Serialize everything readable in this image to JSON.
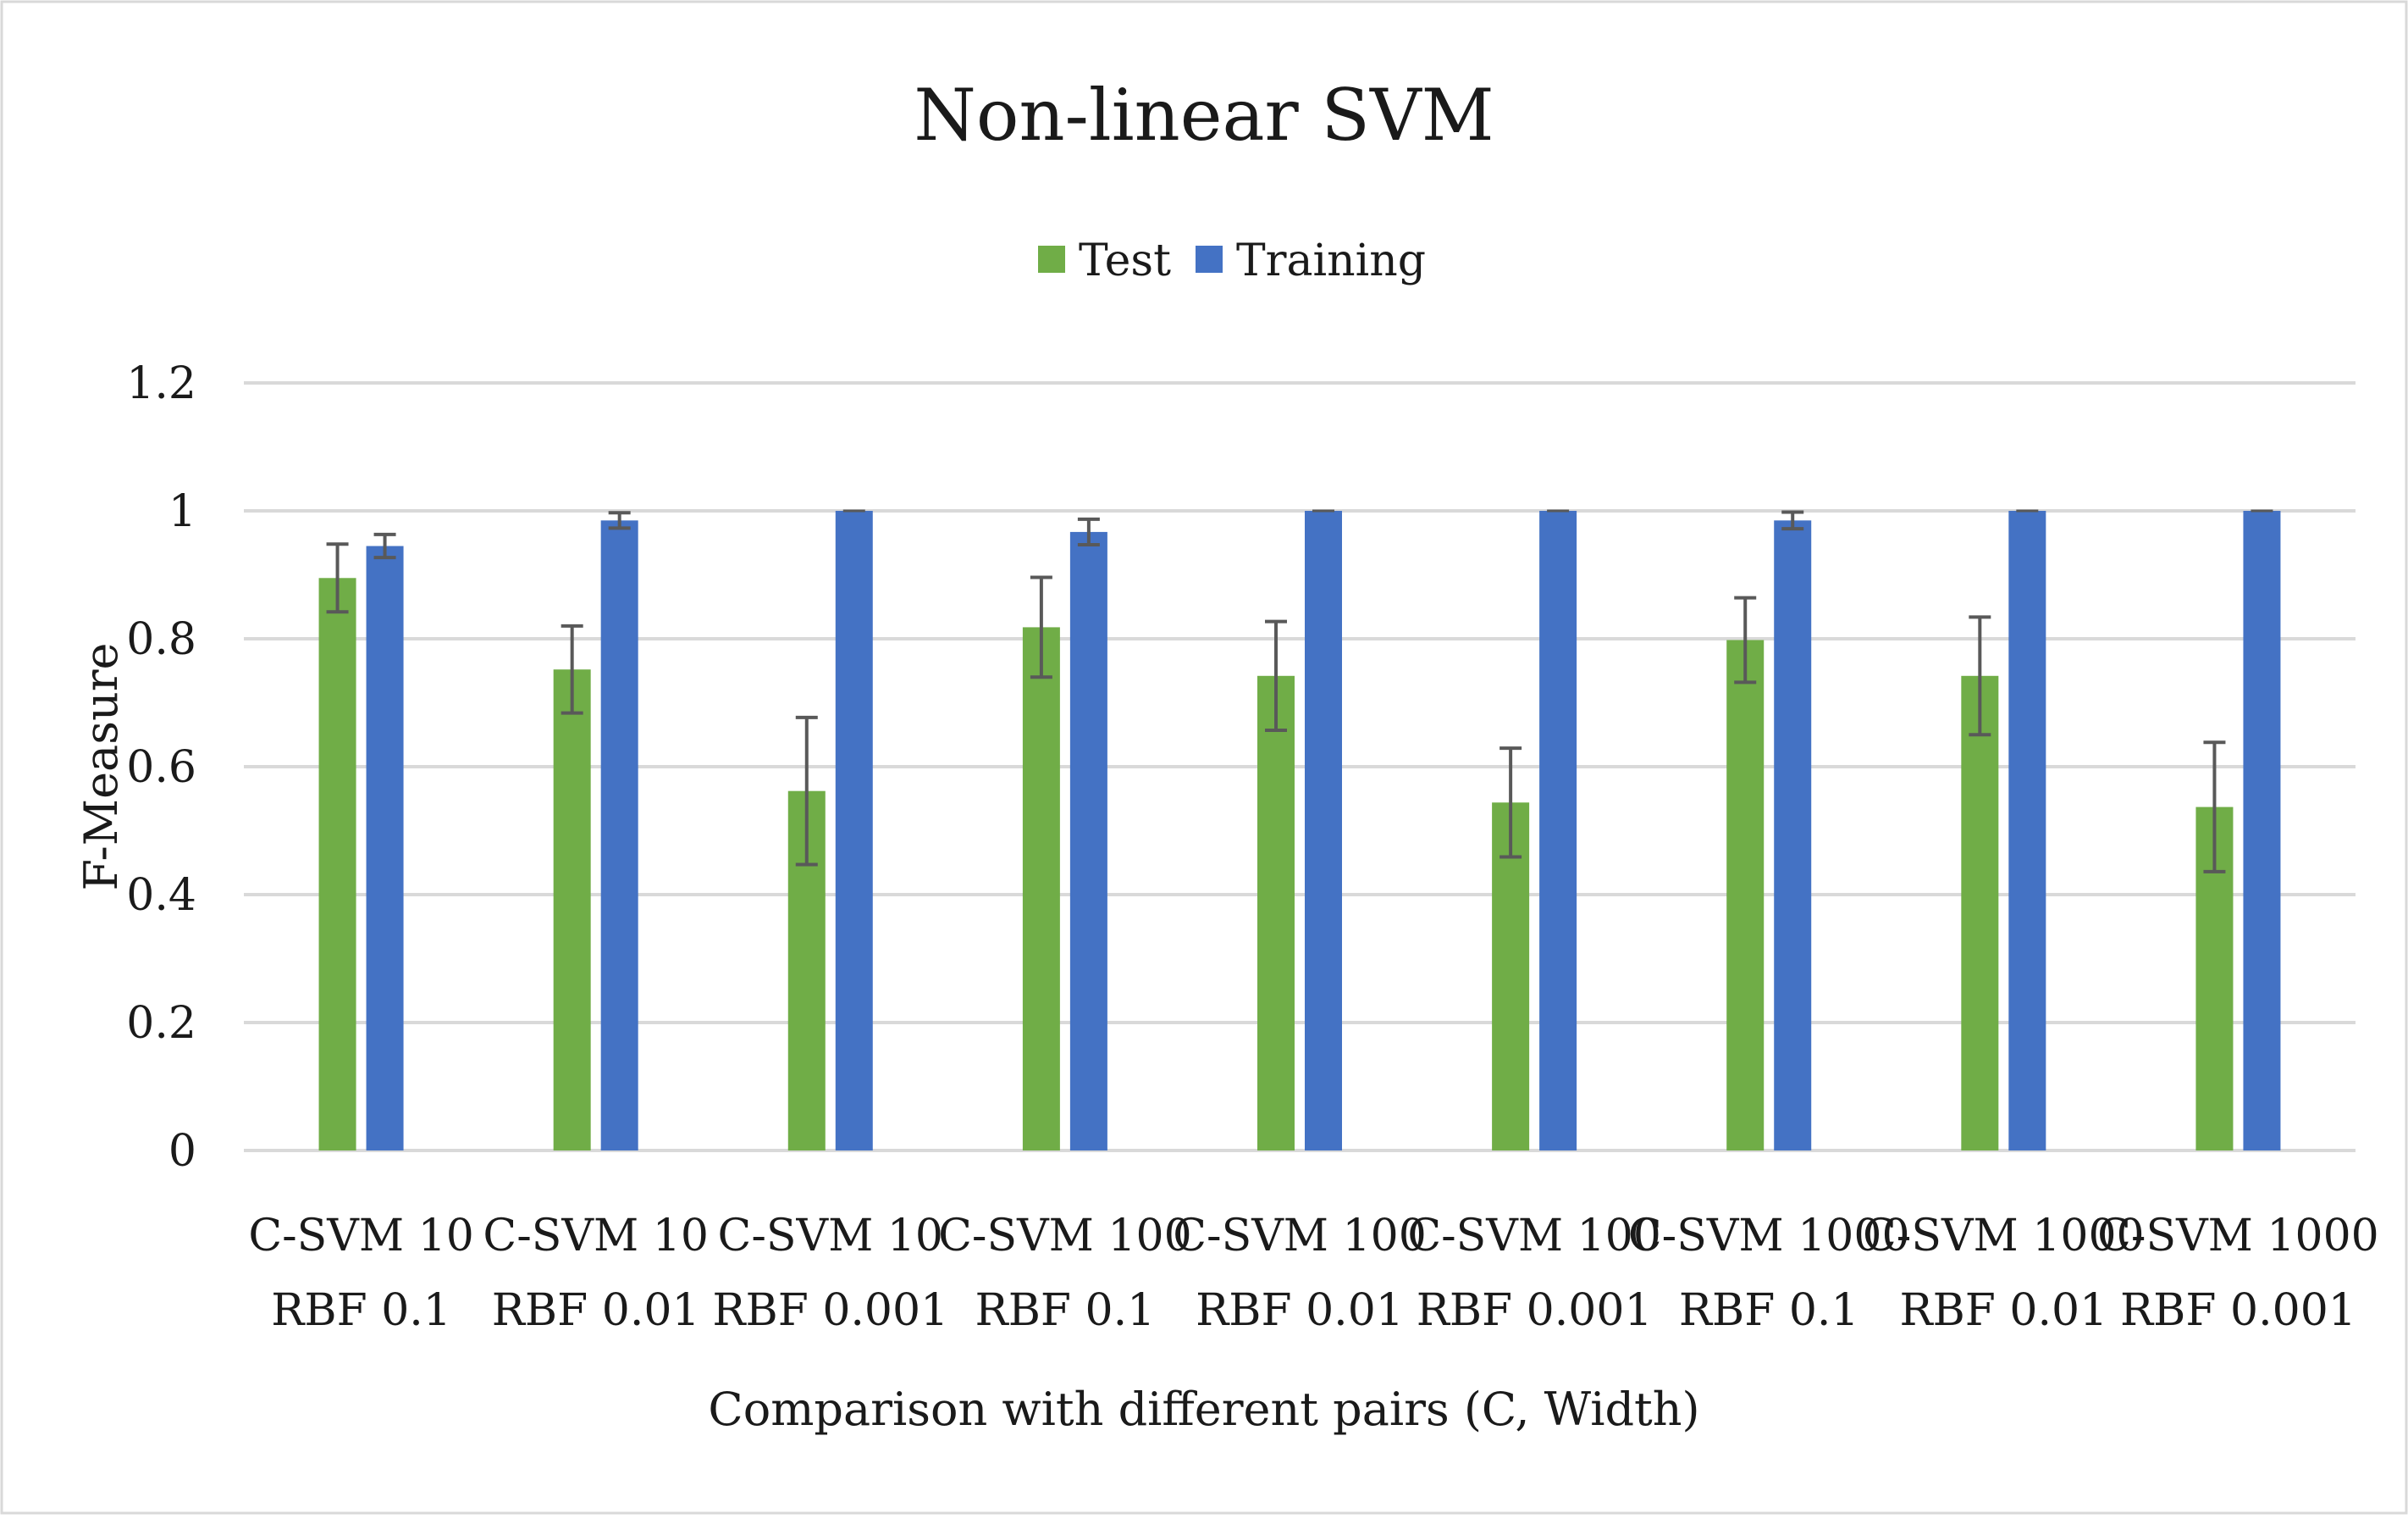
{
  "chart_data": {
    "type": "bar",
    "title": "Non-linear SVM",
    "xlabel": "Comparison with different pairs (C, Width)",
    "ylabel": "F-Measure",
    "ylim": [
      0,
      1.2
    ],
    "yticks": [
      "0",
      "0.2",
      "0.4",
      "0.6",
      "0.8",
      "1",
      "1.2"
    ],
    "grid": true,
    "legend_position": "top",
    "categories": [
      [
        "C-SVM 10",
        "RBF 0.1"
      ],
      [
        "C-SVM 10",
        "RBF 0.01"
      ],
      [
        "C-SVM 10",
        "RBF 0.001"
      ],
      [
        "C-SVM 100",
        "RBF 0.1"
      ],
      [
        "C-SVM 100",
        "RBF 0.01"
      ],
      [
        "C-SVM 100",
        "RBF 0.001"
      ],
      [
        "C-SVM 1000",
        "RBF 0.1"
      ],
      [
        "C-SVM 1000",
        "RBF 0.01"
      ],
      [
        "C-SVM 1000",
        "RBF 0.001"
      ]
    ],
    "series": [
      {
        "name": "Test",
        "color": "#70ad47",
        "values": [
          0.895,
          0.752,
          0.562,
          0.818,
          0.742,
          0.544,
          0.798,
          0.742,
          0.537
        ],
        "errors": [
          0.053,
          0.068,
          0.115,
          0.078,
          0.085,
          0.085,
          0.066,
          0.092,
          0.101
        ]
      },
      {
        "name": "Training",
        "color": "#4472c4",
        "values": [
          0.945,
          0.985,
          1.0,
          0.967,
          1.0,
          1.0,
          0.985,
          1.0,
          1.0
        ],
        "errors": [
          0.018,
          0.012,
          0.0,
          0.02,
          0.0,
          0.0,
          0.013,
          0.0,
          0.0
        ]
      }
    ]
  }
}
